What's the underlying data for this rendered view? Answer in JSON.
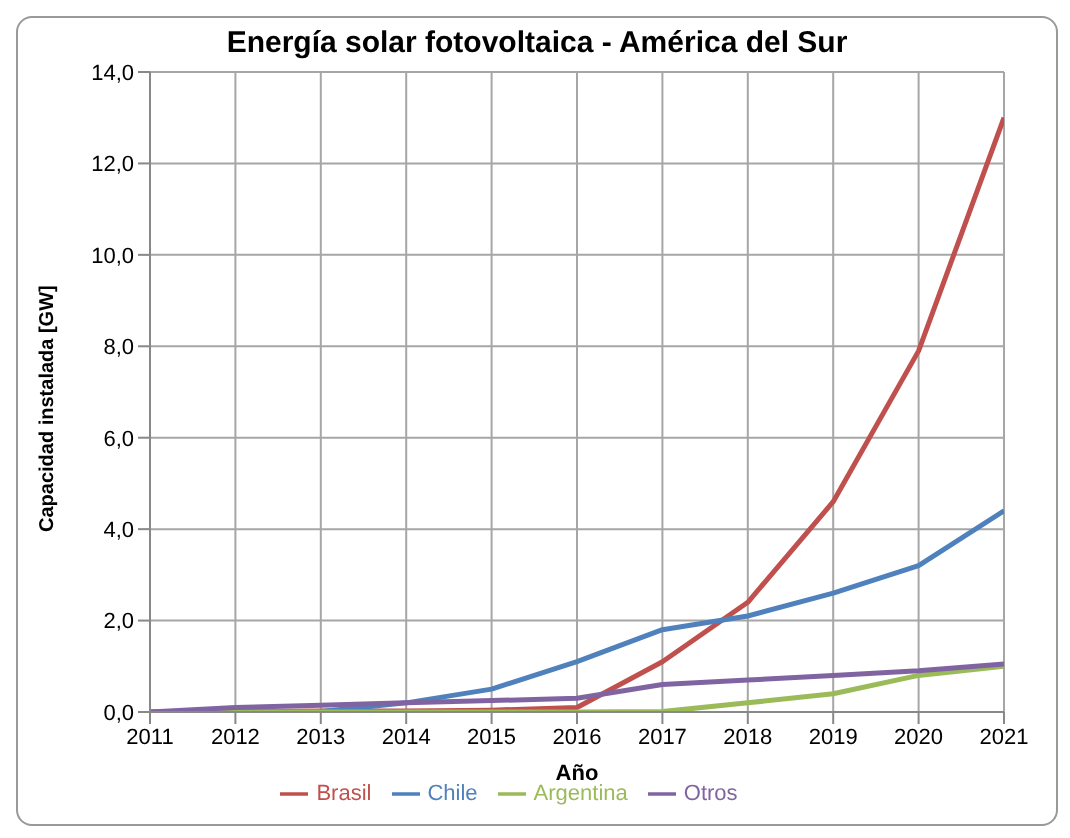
{
  "chart_data": {
    "type": "line",
    "title": "Energía solar fotovoltaica - América del Sur",
    "xlabel": "Año",
    "ylabel": "Capacidad instalada [GW]",
    "x": [
      2011,
      2012,
      2013,
      2014,
      2015,
      2016,
      2017,
      2018,
      2019,
      2020,
      2021
    ],
    "series": [
      {
        "name": "Brasil",
        "color": "#c0504d",
        "values": [
          0,
          0.01,
          0.02,
          0.02,
          0.04,
          0.1,
          1.1,
          2.4,
          4.6,
          7.9,
          13.0
        ]
      },
      {
        "name": "Chile",
        "color": "#4f81bd",
        "values": [
          0,
          0,
          0.01,
          0.2,
          0.5,
          1.1,
          1.8,
          2.1,
          2.6,
          3.2,
          4.4
        ]
      },
      {
        "name": "Argentina",
        "color": "#9bbb59",
        "values": [
          0,
          0,
          0,
          0,
          0,
          0,
          0.01,
          0.2,
          0.4,
          0.8,
          1.0
        ]
      },
      {
        "name": "Otros",
        "color": "#8064a2",
        "values": [
          0,
          0.1,
          0.15,
          0.2,
          0.25,
          0.3,
          0.6,
          0.7,
          0.8,
          0.9,
          1.05
        ]
      }
    ],
    "xlim": [
      2011,
      2021
    ],
    "xticks": [
      2011,
      2012,
      2013,
      2014,
      2015,
      2016,
      2017,
      2018,
      2019,
      2020,
      2021
    ],
    "ylim": [
      0,
      14
    ],
    "yticks": [
      {
        "value": 0,
        "label": "0,0"
      },
      {
        "value": 2,
        "label": "2,0"
      },
      {
        "value": 4,
        "label": "4,0"
      },
      {
        "value": 6,
        "label": "6,0"
      },
      {
        "value": 8,
        "label": "8,0"
      },
      {
        "value": 10,
        "label": "10,0"
      },
      {
        "value": 12,
        "label": "12,0"
      },
      {
        "value": 14,
        "label": "14,0"
      }
    ],
    "grid": true,
    "legend": "bottom",
    "marker": "none",
    "line_style": "solid"
  }
}
